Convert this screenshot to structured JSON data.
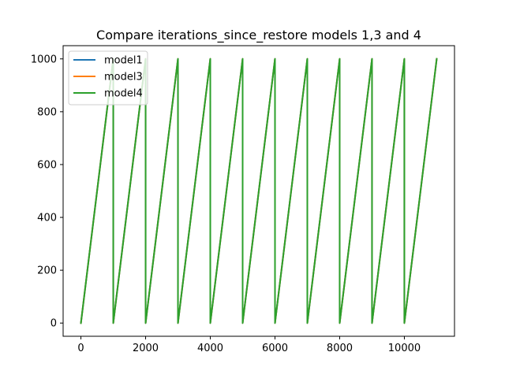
{
  "chart_data": {
    "type": "line",
    "title": "Compare iterations_since_restore models 1,3 and 4",
    "xlabel": "",
    "ylabel": "",
    "xlim": [
      -550,
      11550
    ],
    "ylim": [
      -50,
      1050
    ],
    "x_ticks": [
      0,
      2000,
      4000,
      6000,
      8000,
      10000
    ],
    "y_ticks": [
      0,
      200,
      400,
      600,
      800,
      1000
    ],
    "x_tick_labels": [
      "0",
      "2000",
      "4000",
      "6000",
      "8000",
      "10000"
    ],
    "y_tick_labels": [
      "0",
      "200",
      "400",
      "600",
      "800",
      "1000"
    ],
    "grid": false,
    "legend_position": "upper-left",
    "series": [
      {
        "name": "model1",
        "color": "#1f77b4",
        "points": [
          [
            0,
            0
          ],
          [
            1000,
            1000
          ],
          [
            1000,
            0
          ],
          [
            2000,
            1000
          ],
          [
            2000,
            0
          ],
          [
            3000,
            1000
          ],
          [
            3000,
            0
          ],
          [
            4000,
            1000
          ],
          [
            4000,
            0
          ],
          [
            5000,
            1000
          ],
          [
            5000,
            0
          ],
          [
            6000,
            1000
          ],
          [
            6000,
            0
          ],
          [
            7000,
            1000
          ],
          [
            7000,
            0
          ],
          [
            8000,
            1000
          ],
          [
            8000,
            0
          ],
          [
            9000,
            1000
          ],
          [
            9000,
            0
          ],
          [
            10000,
            1000
          ],
          [
            10000,
            0
          ],
          [
            11000,
            1000
          ]
        ]
      },
      {
        "name": "model3",
        "color": "#ff7f0e",
        "points": [
          [
            0,
            0
          ],
          [
            1000,
            1000
          ],
          [
            1000,
            0
          ],
          [
            2000,
            1000
          ],
          [
            2000,
            0
          ],
          [
            3000,
            1000
          ],
          [
            3000,
            0
          ],
          [
            4000,
            1000
          ],
          [
            4000,
            0
          ],
          [
            5000,
            1000
          ],
          [
            5000,
            0
          ],
          [
            6000,
            1000
          ],
          [
            6000,
            0
          ],
          [
            7000,
            1000
          ],
          [
            7000,
            0
          ],
          [
            8000,
            1000
          ],
          [
            8000,
            0
          ],
          [
            9000,
            1000
          ],
          [
            9000,
            0
          ],
          [
            10000,
            1000
          ],
          [
            10000,
            0
          ],
          [
            11000,
            1000
          ]
        ]
      },
      {
        "name": "model4",
        "color": "#2ca02c",
        "points": [
          [
            0,
            0
          ],
          [
            1000,
            1000
          ],
          [
            1000,
            0
          ],
          [
            2000,
            1000
          ],
          [
            2000,
            0
          ],
          [
            3000,
            1000
          ],
          [
            3000,
            0
          ],
          [
            4000,
            1000
          ],
          [
            4000,
            0
          ],
          [
            5000,
            1000
          ],
          [
            5000,
            0
          ],
          [
            6000,
            1000
          ],
          [
            6000,
            0
          ],
          [
            7000,
            1000
          ],
          [
            7000,
            0
          ],
          [
            8000,
            1000
          ],
          [
            8000,
            0
          ],
          [
            9000,
            1000
          ],
          [
            9000,
            0
          ],
          [
            10000,
            1000
          ],
          [
            10000,
            0
          ],
          [
            11000,
            1000
          ]
        ]
      }
    ]
  }
}
